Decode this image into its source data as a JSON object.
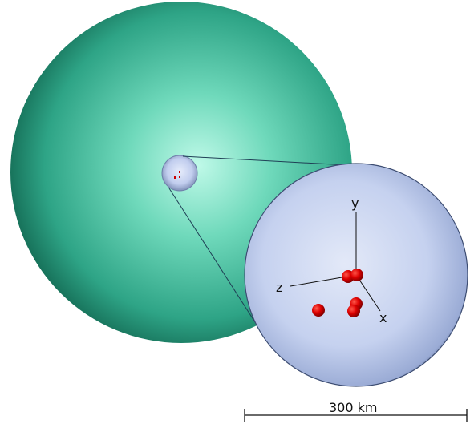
{
  "axes": {
    "x": "x",
    "y": "y",
    "z": "z"
  },
  "scale_bar": {
    "label": "300 km"
  },
  "colors": {
    "large_sphere": "#3fbf9c",
    "large_sphere_highlight": "#b8f7e4",
    "large_sphere_shadow": "#0c5a45",
    "inset_sphere": "#c6d3f0",
    "inset_sphere_shadow": "#5b6f9a",
    "particle": "#cc0000",
    "line": "#1f3f55"
  },
  "particles_count_shown": 6
}
